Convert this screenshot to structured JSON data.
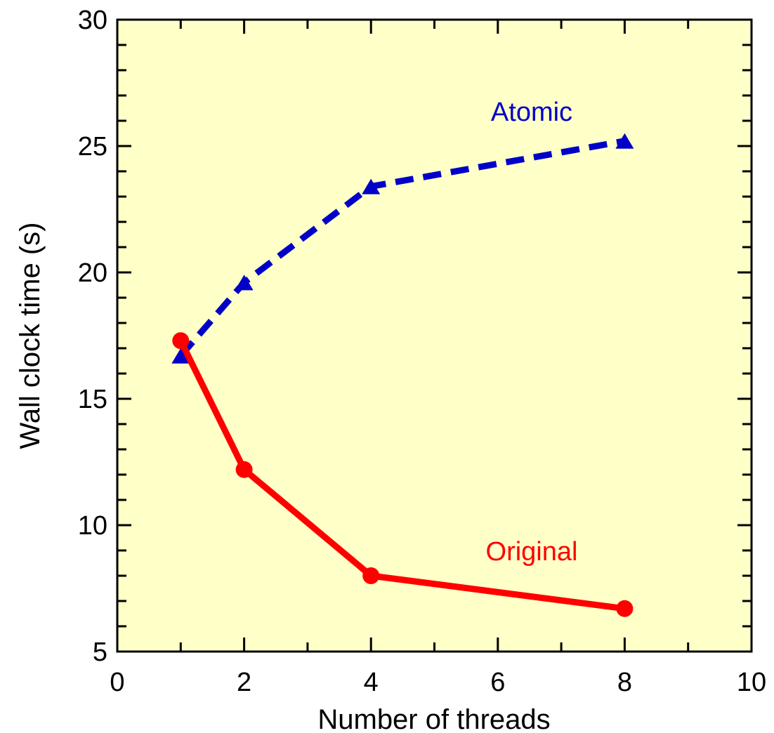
{
  "chart_data": {
    "type": "line",
    "xlabel": "Number of threads",
    "ylabel": "Wall clock time (s)",
    "xlim": [
      0,
      10
    ],
    "ylim": [
      5,
      30
    ],
    "xticks": [
      0,
      2,
      4,
      6,
      8,
      10
    ],
    "yticks": [
      5,
      10,
      15,
      20,
      25,
      30
    ],
    "background": "#ffffc8",
    "grid": false,
    "series": [
      {
        "name": "Atomic",
        "color": "#0000c8",
        "line_style": "dashed",
        "marker": "triangle",
        "x": [
          1,
          2,
          4,
          8
        ],
        "y": [
          16.7,
          19.6,
          23.4,
          25.2
        ]
      },
      {
        "name": "Original",
        "color": "#ff0000",
        "line_style": "solid",
        "marker": "circle",
        "x": [
          1,
          2,
          4,
          8
        ],
        "y": [
          17.3,
          12.2,
          8.0,
          6.7
        ]
      }
    ]
  }
}
